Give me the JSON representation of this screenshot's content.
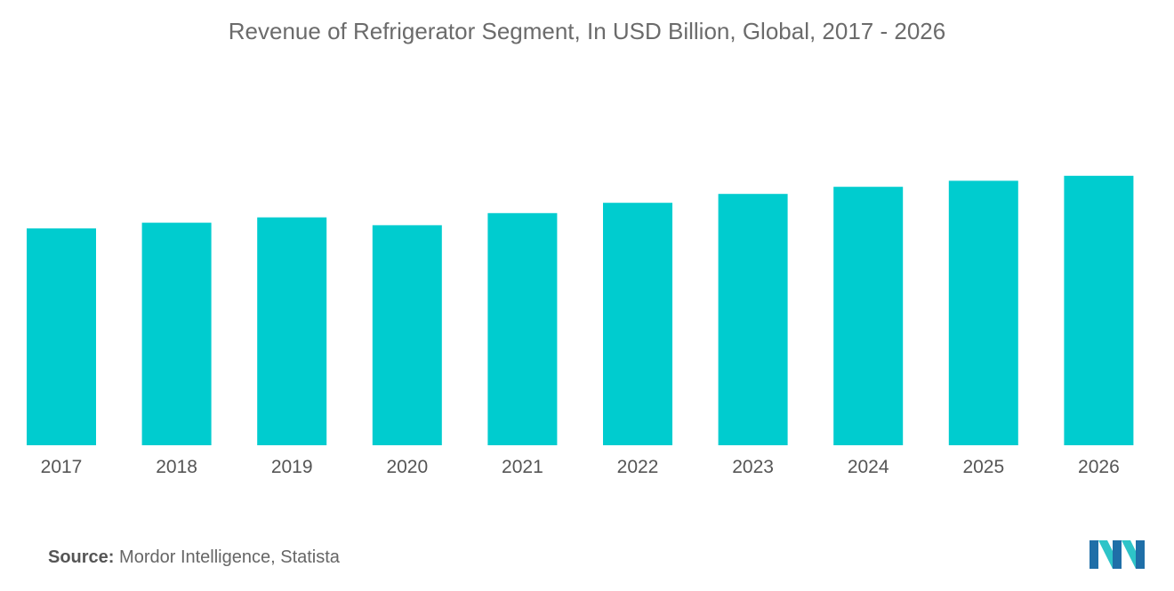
{
  "title": "Revenue of Refrigerator Segment, In USD Billion, Global, 2017 - 2026",
  "source": {
    "label": "Source:",
    "text": "Mordor Intelligence, Statista"
  },
  "logo": {
    "icon": "mordor-intelligence-logo"
  },
  "colors": {
    "bar": "#00cccf",
    "text": "#555555",
    "logo_dark": "#1f6fa8",
    "logo_light": "#2ec4c8"
  },
  "chart_data": {
    "type": "bar",
    "title": "Revenue of Refrigerator Segment, In USD Billion, Global, 2017 - 2026",
    "xlabel": "",
    "ylabel": "",
    "categories": [
      "2017",
      "2018",
      "2019",
      "2020",
      "2021",
      "2022",
      "2023",
      "2024",
      "2025",
      "2026"
    ],
    "values": [
      61,
      62.6,
      64.1,
      61.9,
      65.3,
      68.2,
      70.7,
      72.7,
      74.4,
      75.8
    ],
    "ylim": [
      0,
      100
    ],
    "grid": false,
    "legend": "none"
  }
}
